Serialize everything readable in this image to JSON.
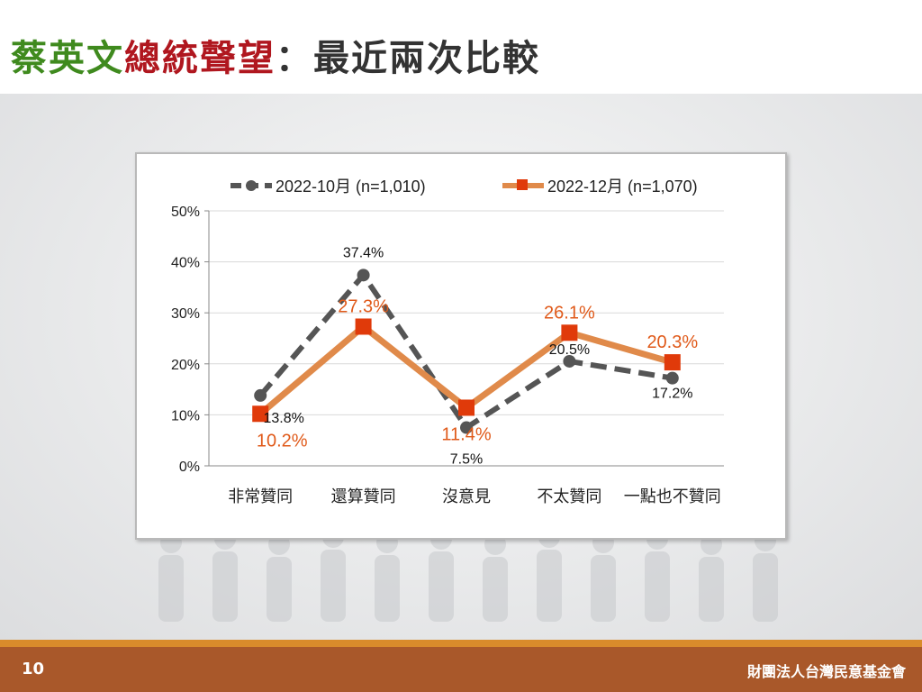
{
  "slide": {
    "title_part1": "蔡英文",
    "title_part2": "總統聲望",
    "title_part3": "：最近兩次比較",
    "page_number": "10",
    "organization": "財團法人台灣民意基金會"
  },
  "colors": {
    "title_green": "#3f8a1e",
    "title_red": "#b0171f",
    "series_oct": "#555555",
    "series_dec": "#e08a4a",
    "marker_dec": "#e03a0a",
    "label_dec": "#e05a1a",
    "footer": "#a9582a",
    "footer_stripe": "#d98b2b"
  },
  "chart_data": {
    "type": "line",
    "categories": [
      "非常贊同",
      "還算贊同",
      "沒意見",
      "不太贊同",
      "一點也不贊同"
    ],
    "ylim": [
      0,
      50
    ],
    "yticks": [
      "0%",
      "10%",
      "20%",
      "30%",
      "40%",
      "50%"
    ],
    "grid": true,
    "legend_position": "top",
    "series": [
      {
        "name": "2022-10月  (n=1,010)",
        "values": [
          13.8,
          37.4,
          7.5,
          20.5,
          17.2
        ],
        "labels": [
          "13.8%",
          "37.4%",
          "7.5%",
          "20.5%",
          "17.2%"
        ],
        "style": "dashed",
        "marker": "circle"
      },
      {
        "name": "2022-12月  (n=1,070)",
        "values": [
          10.2,
          27.3,
          11.4,
          26.1,
          20.3
        ],
        "labels": [
          "10.2%",
          "27.3%",
          "11.4%",
          "26.1%",
          "20.3%"
        ],
        "style": "solid",
        "marker": "square"
      }
    ]
  }
}
